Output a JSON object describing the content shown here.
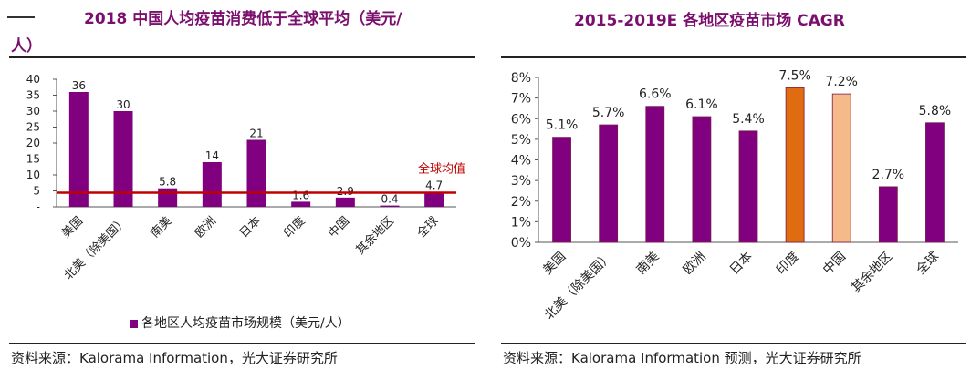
{
  "left": {
    "title_line1": "2018 中国人均疫苗消费低于全球平均（美元/",
    "title_line2": "人）",
    "legend_label": "各地区人均疫苗市场规模（美元/人）",
    "source": "资料来源：Kalorama Information，光大证券研究所",
    "average_label": "全球均值",
    "colors": {
      "bar": "#800080",
      "average": "#c00000"
    }
  },
  "right": {
    "title": "2015-2019E 各地区疫苗市场 CAGR",
    "source": "资料来源：Kalorama Information 预测，光大证券研究所",
    "colors": {
      "default": "#800080",
      "india": "#e06c10",
      "china": "#f5b98a"
    }
  },
  "chart_data": [
    {
      "type": "bar",
      "title": "2018 中国人均疫苗消费低于全球平均（美元/人）",
      "categories": [
        "美国",
        "北美（除美国）",
        "南美",
        "欧洲",
        "日本",
        "印度",
        "中国",
        "其余地区",
        "全球"
      ],
      "series": [
        {
          "name": "各地区人均疫苗市场规模（美元/人）",
          "values": [
            36,
            30,
            5.8,
            14,
            21,
            1.6,
            2.9,
            0.4,
            4.7
          ]
        }
      ],
      "value_labels": [
        "36",
        "30",
        "5.8",
        "14",
        "21",
        "1.6",
        "2.9",
        "0.4",
        "4.7"
      ],
      "yticks": [
        "-",
        "5",
        "10",
        "15",
        "20",
        "25",
        "30",
        "35",
        "40"
      ],
      "ylim": [
        0,
        40
      ],
      "average_line": {
        "label": "全球均值",
        "value": 4.7
      },
      "legend": "bottom",
      "grid": false
    },
    {
      "type": "bar",
      "title": "2015-2019E 各地区疫苗市场 CAGR",
      "categories": [
        "美国",
        "北美（除美国）",
        "南美",
        "欧洲",
        "日本",
        "印度",
        "中国",
        "其余地区",
        "全球"
      ],
      "values": [
        5.1,
        5.7,
        6.6,
        6.1,
        5.4,
        7.5,
        7.2,
        2.7,
        5.8
      ],
      "value_labels": [
        "5.1%",
        "5.7%",
        "6.6%",
        "6.1%",
        "5.4%",
        "7.5%",
        "7.2%",
        "2.7%",
        "5.8%"
      ],
      "yticks": [
        "0%",
        "1%",
        "2%",
        "3%",
        "4%",
        "5%",
        "6%",
        "7%",
        "8%"
      ],
      "ylim": [
        0,
        8
      ],
      "highlight": {
        "印度": "#e06c10",
        "中国": "#f5b98a"
      },
      "grid": false
    }
  ]
}
